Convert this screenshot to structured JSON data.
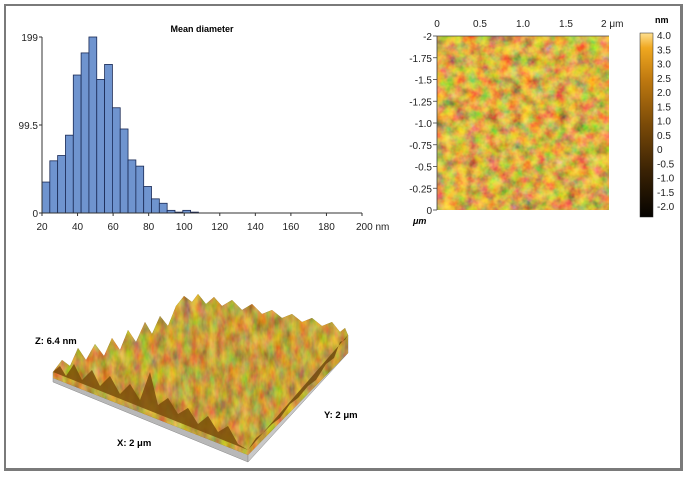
{
  "figure": {
    "histogram_label": "Mean diameter",
    "afm_2d": {
      "x_ticks": [
        "0",
        "0.5",
        "1.0",
        "1.5",
        "2 μm"
      ],
      "y_ticks": [
        "-2",
        "-1.75",
        "-1.5",
        "-1.25",
        "-1.0",
        "-0.75",
        "-0.5",
        "-0.25",
        "0"
      ],
      "y_unit": "μm",
      "colorbar_unit": "nm",
      "colorbar_ticks": [
        "4.0",
        "3.5",
        "3.0",
        "2.5",
        "2.0",
        "1.5",
        "1.0",
        "0.5",
        "0",
        "-0.5",
        "-1.0",
        "-1.5",
        "-2.0"
      ],
      "colorbar_range": [
        -2.3,
        4.0
      ],
      "colormap": [
        "#050300",
        "#3a2204",
        "#7a4a08",
        "#c07a10",
        "#f0a820",
        "#ffe090"
      ]
    },
    "afm_3d": {
      "z_label": "Z: 6.4 nm",
      "x_label": "X: 2 μm",
      "y_label": "Y: 2 μm",
      "surface_color": "#8a5a0c",
      "base_color": "#b8b8b8"
    }
  },
  "chart_data": {
    "type": "bar",
    "title": "Mean diameter",
    "xlabel": "nm",
    "ylabel": "",
    "bin_start": 20,
    "bin_width": 4.4,
    "categories": [
      "20",
      "24.4",
      "28.8",
      "33.2",
      "37.6",
      "42",
      "46.4",
      "50.8",
      "55.2",
      "59.6",
      "64",
      "68.4",
      "72.8",
      "77.2",
      "81.6",
      "86",
      "90.4",
      "94.8",
      "99.2",
      "103.6",
      "108"
    ],
    "values": [
      35,
      59,
      65,
      88,
      156,
      181,
      199,
      151,
      168,
      119,
      95,
      60,
      53,
      30,
      16,
      11,
      3,
      1,
      3,
      1,
      0
    ],
    "x_ticks": [
      "20",
      "40",
      "60",
      "80",
      "100",
      "120",
      "140",
      "160",
      "180",
      "200 nm"
    ],
    "x_tick_values": [
      20,
      40,
      60,
      80,
      100,
      120,
      140,
      160,
      180,
      200
    ],
    "y_ticks": [
      "0",
      "99.5",
      "199"
    ],
    "y_tick_values": [
      0,
      99.5,
      199
    ],
    "xlim": [
      20,
      200
    ],
    "ylim": [
      0,
      199
    ],
    "bar_color": "#6f94cf",
    "bar_edge_color": "#1a2a55",
    "grid": false,
    "legend": "none"
  }
}
